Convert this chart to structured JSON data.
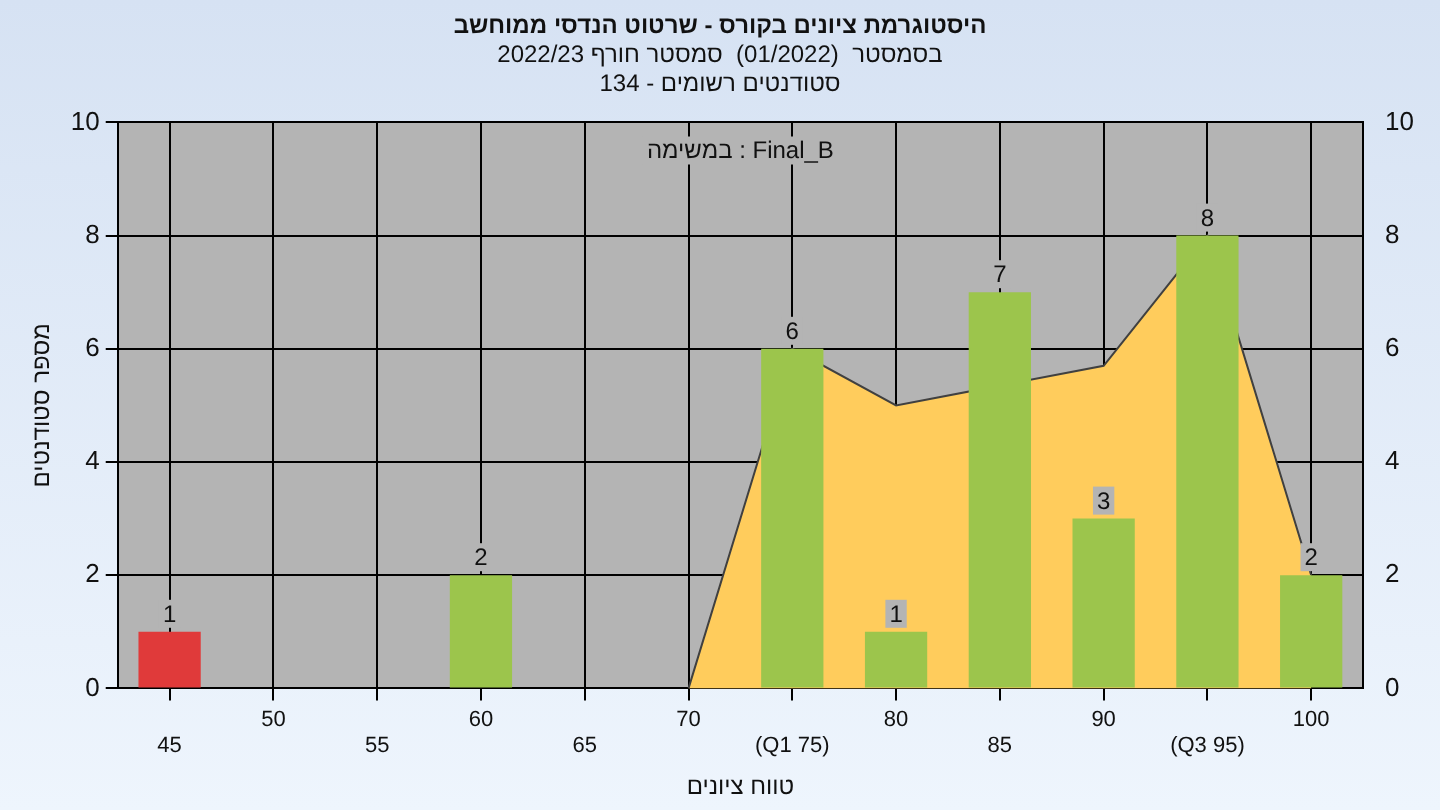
{
  "chart_data": {
    "type": "bar",
    "title": "היסטוגרמת ציונים בקורס - שרטוט הנדסי ממוחשב",
    "subtitle": "בסמסטר  (01/2022)  סמסטר חורף 2022/23\nסטודנטים רשומים - 134",
    "xlabel": "טווח ציונים",
    "ylabel": "מספר סטודנטים",
    "annotations": [
      "במשימה : Final_B"
    ],
    "categories": [
      "45",
      "50",
      "55",
      "60",
      "65",
      "70",
      "(Q1 75)",
      "80",
      "85",
      "90",
      "(Q3 95)",
      "100"
    ],
    "series": [
      {
        "type": "bar",
        "colors": [
          "#e03a3a",
          "#9cc54c",
          "#9cc54c",
          "#9cc54c",
          "#9cc54c",
          "#9cc54c",
          "#9cc54c",
          "#9cc54c",
          "#9cc54c",
          "#9cc54c",
          "#9cc54c",
          "#9cc54c"
        ],
        "values": [
          1,
          null,
          null,
          2,
          null,
          null,
          6,
          1,
          7,
          3,
          8,
          2
        ],
        "value_labels": [
          "1",
          null,
          null,
          "2",
          null,
          null,
          "6",
          "1",
          "7",
          "3",
          "8",
          "2"
        ]
      },
      {
        "type": "area",
        "color": "#ffcc5c",
        "values": [
          null,
          null,
          null,
          null,
          null,
          0,
          6,
          5.0,
          null,
          5.7,
          8,
          2
        ]
      }
    ],
    "ylim": [
      0,
      10
    ],
    "yticks": [
      0,
      2,
      4,
      6,
      8,
      10
    ],
    "y2lim": [
      0,
      10
    ],
    "y2ticks": [
      0,
      2,
      4,
      6,
      8,
      10
    ],
    "grid": true,
    "legend": false
  }
}
